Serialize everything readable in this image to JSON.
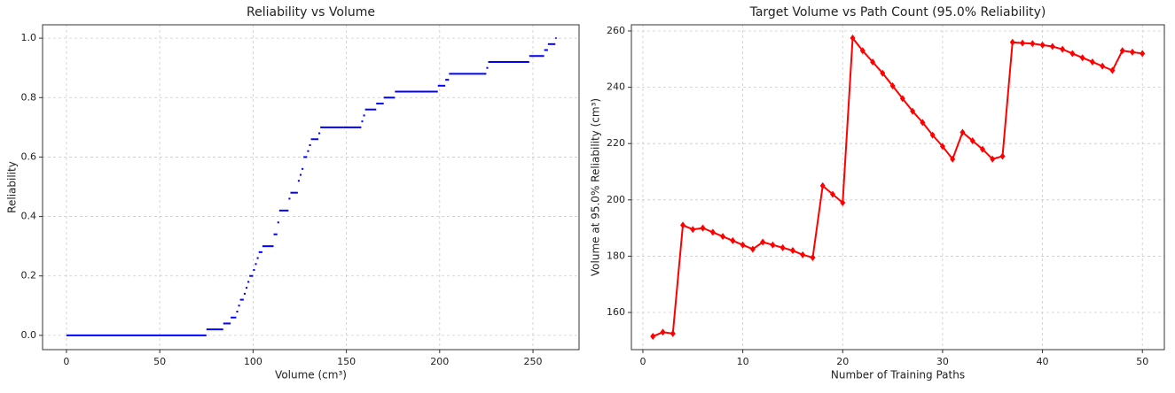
{
  "chart_data": [
    {
      "type": "step",
      "title": "Reliability vs Volume",
      "x_label": "Volume (cm³)",
      "y_label": "Reliability",
      "color": "#0000ff",
      "grid": true,
      "x": [
        0,
        75,
        84,
        88,
        91,
        92,
        93,
        95,
        96,
        97,
        98,
        100,
        101,
        102,
        103,
        105,
        111,
        113,
        114,
        119,
        120,
        124,
        125,
        126,
        127,
        129,
        130,
        131,
        135,
        136,
        158,
        159,
        160,
        166,
        170,
        176,
        199,
        203,
        205,
        225,
        226,
        248,
        256,
        258,
        262
      ],
      "values": [
        0,
        0.02,
        0.04,
        0.06,
        0.08,
        0.1,
        0.12,
        0.14,
        0.16,
        0.18,
        0.2,
        0.22,
        0.24,
        0.26,
        0.28,
        0.3,
        0.34,
        0.38,
        0.42,
        0.46,
        0.48,
        0.52,
        0.54,
        0.56,
        0.6,
        0.62,
        0.64,
        0.66,
        0.68,
        0.7,
        0.72,
        0.74,
        0.76,
        0.78,
        0.8,
        0.82,
        0.84,
        0.86,
        0.88,
        0.9,
        0.92,
        0.94,
        0.96,
        0.98,
        1.0
      ],
      "xlim": [
        -12.8,
        274.7
      ],
      "ylim": [
        -0.048,
        1.045
      ],
      "xticks": [
        0,
        50,
        100,
        150,
        200,
        250
      ],
      "yticks": [
        {
          "value": 0,
          "label": "0.0"
        },
        0.2,
        0.4,
        0.6,
        0.8,
        {
          "value": 1,
          "label": "1.0"
        }
      ]
    },
    {
      "type": "line",
      "title": "Target Volume vs Path Count (95.0% Reliability)",
      "x_label": "Number of Training Paths",
      "y_label": "Volume at 95.0% Reliability (cm³)",
      "color": "#ff0000",
      "grid": true,
      "x": [
        1,
        2,
        3,
        4,
        5,
        6,
        7,
        8,
        9,
        10,
        11,
        12,
        13,
        14,
        15,
        16,
        17,
        18,
        19,
        20,
        21,
        22,
        23,
        24,
        25,
        26,
        27,
        28,
        29,
        30,
        31,
        32,
        33,
        34,
        35,
        36,
        37,
        38,
        39,
        40,
        41,
        42,
        43,
        44,
        45,
        46,
        47,
        48,
        49,
        50
      ],
      "values": [
        151.5,
        153,
        152.5,
        191,
        189.5,
        190,
        188.5,
        187,
        185.5,
        184,
        182.5,
        185,
        184,
        183,
        182,
        180.5,
        179.5,
        205,
        202,
        199,
        257.5,
        253,
        249,
        245,
        240.5,
        236,
        231.5,
        227.5,
        223,
        219,
        214.5,
        224,
        221,
        218,
        214.5,
        215.5,
        256,
        255.7,
        255.5,
        255,
        254.5,
        253.5,
        252,
        250.5,
        249,
        247.5,
        246,
        253,
        252.5,
        252
      ],
      "xlim": [
        -1.15,
        52.2
      ],
      "ylim": [
        146.8,
        262.2
      ],
      "xticks": [
        0,
        10,
        20,
        30,
        40,
        50
      ],
      "yticks": [
        160,
        180,
        200,
        220,
        240,
        260
      ]
    }
  ]
}
